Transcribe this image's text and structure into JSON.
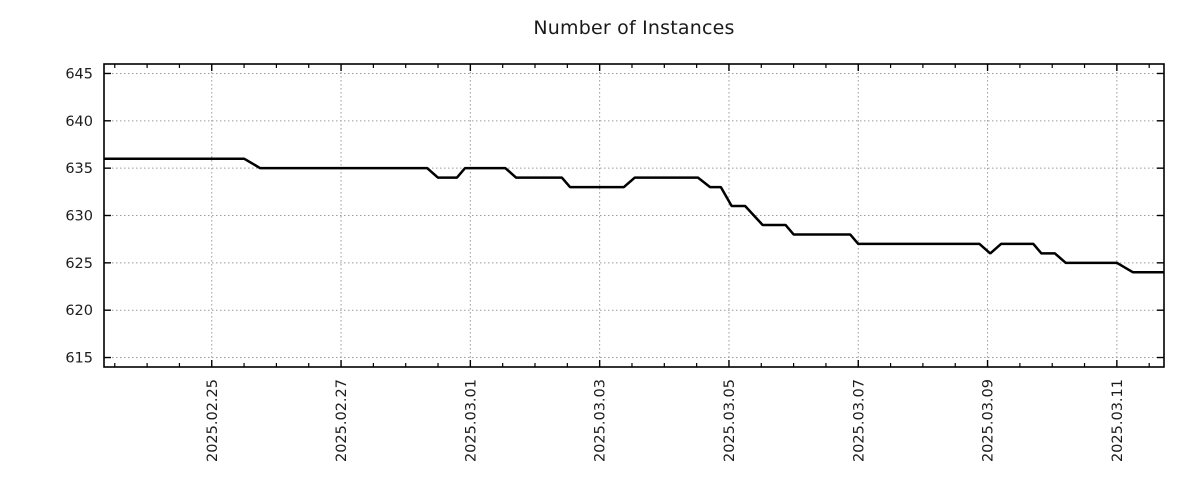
{
  "chart_data": {
    "type": "line",
    "title": "Number of Instances",
    "legend_position": "none",
    "x_axis": {
      "min": "2025-02-23T08:00",
      "max": "2025-03-11T17:30",
      "grid": "dotted",
      "minor_tick_interval_hours": 12,
      "major_ticks": [
        {
          "date": "2025-02-25T00:00",
          "label": "2025.02.25"
        },
        {
          "date": "2025-02-27T00:00",
          "label": "2025.02.27"
        },
        {
          "date": "2025-03-01T00:00",
          "label": "2025.03.01"
        },
        {
          "date": "2025-03-03T00:00",
          "label": "2025.03.03"
        },
        {
          "date": "2025-03-05T00:00",
          "label": "2025.03.05"
        },
        {
          "date": "2025-03-07T00:00",
          "label": "2025.03.07"
        },
        {
          "date": "2025-03-09T00:00",
          "label": "2025.03.09"
        },
        {
          "date": "2025-03-11T00:00",
          "label": "2025.03.11"
        }
      ]
    },
    "y_axis": {
      "min": 614,
      "max": 646,
      "ticks": [
        615,
        620,
        625,
        630,
        635,
        640,
        645
      ],
      "grid": "dotted"
    },
    "series": [
      {
        "name": "instances",
        "color": "#000000",
        "line_width": 2.5,
        "points": [
          [
            "2025-02-23T08:00",
            636
          ],
          [
            "2025-02-25T12:00",
            636
          ],
          [
            "2025-02-25T18:00",
            635
          ],
          [
            "2025-02-28T08:00",
            635
          ],
          [
            "2025-02-28T12:00",
            634
          ],
          [
            "2025-02-28T19:00",
            634
          ],
          [
            "2025-02-28T22:00",
            635
          ],
          [
            "2025-03-01T13:00",
            635
          ],
          [
            "2025-03-01T17:00",
            634
          ],
          [
            "2025-03-02T10:00",
            634
          ],
          [
            "2025-03-02T13:00",
            633
          ],
          [
            "2025-03-03T09:00",
            633
          ],
          [
            "2025-03-03T13:00",
            634
          ],
          [
            "2025-03-04T12:30",
            634
          ],
          [
            "2025-03-04T17:00",
            633
          ],
          [
            "2025-03-04T21:00",
            633
          ],
          [
            "2025-03-05T01:00",
            631
          ],
          [
            "2025-03-05T06:00",
            631
          ],
          [
            "2025-03-05T12:30",
            629
          ],
          [
            "2025-03-05T21:00",
            629
          ],
          [
            "2025-03-06T00:00",
            628
          ],
          [
            "2025-03-06T21:00",
            628
          ],
          [
            "2025-03-07T00:00",
            627
          ],
          [
            "2025-03-08T21:00",
            627
          ],
          [
            "2025-03-09T01:00",
            626
          ],
          [
            "2025-03-09T05:00",
            627
          ],
          [
            "2025-03-09T17:00",
            627
          ],
          [
            "2025-03-09T20:00",
            626
          ],
          [
            "2025-03-10T01:00",
            626
          ],
          [
            "2025-03-10T05:00",
            625
          ],
          [
            "2025-03-11T00:00",
            625
          ],
          [
            "2025-03-11T06:00",
            624
          ],
          [
            "2025-03-11T17:30",
            624
          ]
        ]
      }
    ]
  },
  "style": {
    "background": "#ffffff",
    "grid_color": "#9b9b9b",
    "axis_color": "#000000",
    "text_color": "#1c1c1c"
  }
}
